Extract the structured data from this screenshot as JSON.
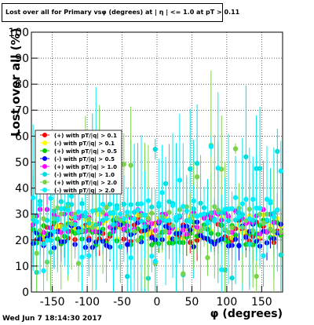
{
  "chart_data": {
    "type": "scatter",
    "title": "Lost over all for Primary vsφ (degrees) at | η | <= 1.0 at pT > 0.11",
    "xlabel": "φ (degrees)",
    "ylabel": "Lost over all (%)",
    "xlim": [
      -180,
      180
    ],
    "ylim": [
      0,
      100
    ],
    "xticks": [
      -150,
      -100,
      -50,
      0,
      50,
      100,
      150
    ],
    "yticks": [
      0,
      10,
      20,
      30,
      40,
      50,
      60,
      70,
      80,
      90,
      100
    ],
    "grid": true,
    "legend_position": "left",
    "series": [
      {
        "name": "(+) with pT/|q| > 0.1",
        "color": "#ff0000",
        "baseline": 24
      },
      {
        "name": "(-) with pT/|q| > 0.1",
        "color": "#ffff00",
        "baseline": 25
      },
      {
        "name": "(+) with pT/|q| > 0.5",
        "color": "#00cc00",
        "baseline": 23
      },
      {
        "name": "(-) with pT/|q| > 0.5",
        "color": "#0000ff",
        "baseline": 22
      },
      {
        "name": "(+) with pT/|q| > 1.0",
        "color": "#ff00ff",
        "baseline": 27
      },
      {
        "name": "(-) with pT/|q| > 1.0",
        "color": "#00dddd",
        "baseline": 30
      },
      {
        "name": "(+) with pT/|q| > 2.0",
        "color": "#7cd24a",
        "baseline": 28
      },
      {
        "name": "(-) with pT/|q| > 2.0",
        "color": "#00eeff",
        "baseline": 32
      }
    ]
  },
  "footer": "Wed Jun  7 18:14:30 2017"
}
